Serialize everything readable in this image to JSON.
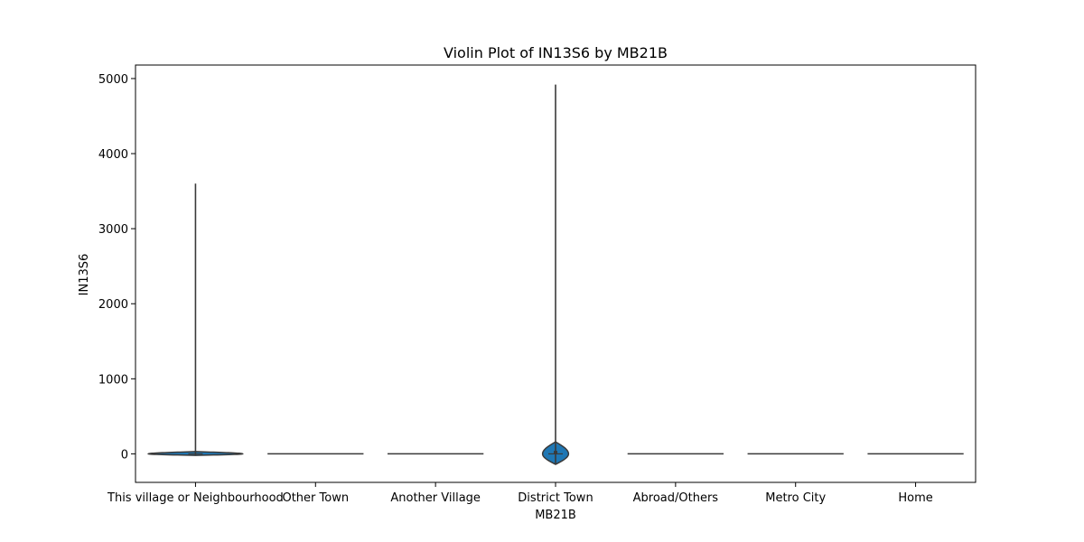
{
  "chart_data": {
    "type": "violin",
    "title": "Violin Plot of IN13S6 by MB21B",
    "xlabel": "MB21B",
    "ylabel": "IN13S6",
    "categories": [
      "This village or Neighbourhood",
      "Other Town",
      "Another Village",
      "District Town",
      "Abroad/Others",
      "Metro City",
      "Home"
    ],
    "ylim": [
      -380,
      5180
    ],
    "yticks": [
      0,
      1000,
      2000,
      3000,
      4000,
      5000
    ],
    "grid": false,
    "colors": {
      "fill": "#1f77b4",
      "edge": "#3a3a3a"
    },
    "violins": [
      {
        "category": "This village or Neighbourhood",
        "min": -20,
        "q1": 0,
        "median": 0,
        "q3": 0,
        "max": 3600,
        "body_bottom": -20,
        "body_top": 30,
        "max_half_width_ratio": 0.98
      },
      {
        "category": "Other Town",
        "min": 0,
        "q1": 0,
        "median": 0,
        "q3": 0,
        "max": 0,
        "body_bottom": 0,
        "body_top": 0,
        "max_half_width_ratio": 1.0
      },
      {
        "category": "Another Village",
        "min": 0,
        "q1": 0,
        "median": 0,
        "q3": 0,
        "max": 0,
        "body_bottom": 0,
        "body_top": 0,
        "max_half_width_ratio": 1.0
      },
      {
        "category": "District Town",
        "min": -140,
        "q1": 0,
        "median": 0,
        "q3": 40,
        "max": 4920,
        "body_bottom": -140,
        "body_top": 160,
        "max_half_width_ratio": 0.27
      },
      {
        "category": "Abroad/Others",
        "min": 0,
        "q1": 0,
        "median": 0,
        "q3": 0,
        "max": 0,
        "body_bottom": 0,
        "body_top": 0,
        "max_half_width_ratio": 1.0
      },
      {
        "category": "Metro City",
        "min": 0,
        "q1": 0,
        "median": 0,
        "q3": 0,
        "max": 0,
        "body_bottom": 0,
        "body_top": 0,
        "max_half_width_ratio": 1.0
      },
      {
        "category": "Home",
        "min": 0,
        "q1": 0,
        "median": 0,
        "q3": 0,
        "max": 0,
        "body_bottom": 0,
        "body_top": 0,
        "max_half_width_ratio": 1.0
      }
    ]
  }
}
